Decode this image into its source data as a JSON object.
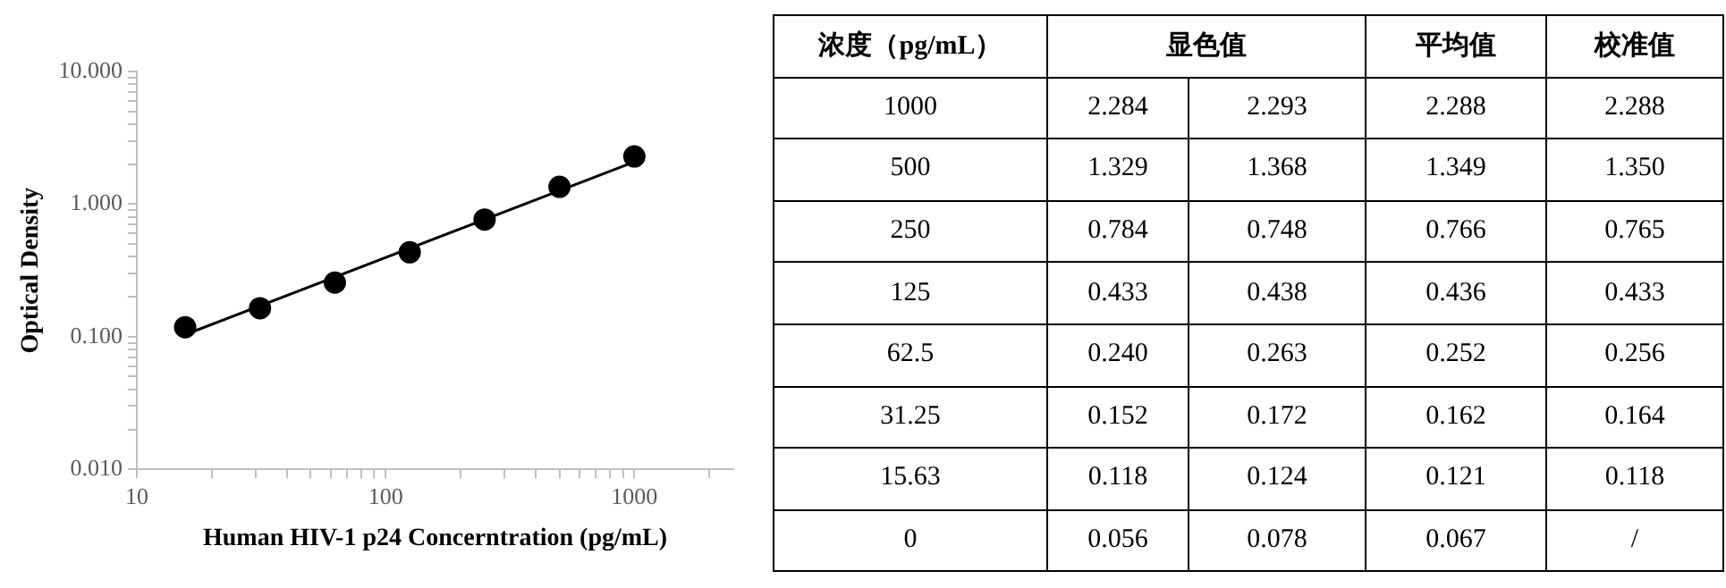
{
  "chart_data": [
    {
      "type": "scatter",
      "xlabel": "Human HIV-1 p24 Concerntration (pg/mL)",
      "ylabel": "Optical Density",
      "log": "xy",
      "grid": false,
      "marker": "circle",
      "xlim": [
        10,
        2500
      ],
      "ylim": [
        0.01,
        10
      ],
      "xticks": [
        10,
        {
          "value": 20,
          "label": null
        },
        {
          "value": 30,
          "label": null
        },
        {
          "value": 40,
          "label": null
        },
        {
          "value": 50,
          "label": null
        },
        {
          "value": 60,
          "label": null
        },
        {
          "value": 70,
          "label": null
        },
        {
          "value": 80,
          "label": null
        },
        {
          "value": 90,
          "label": null
        },
        100,
        {
          "value": 200,
          "label": null
        },
        {
          "value": 300,
          "label": null
        },
        {
          "value": 400,
          "label": null
        },
        {
          "value": 500,
          "label": null
        },
        {
          "value": 600,
          "label": null
        },
        {
          "value": 700,
          "label": null
        },
        {
          "value": 800,
          "label": null
        },
        {
          "value": 900,
          "label": null
        },
        1000,
        {
          "value": 2000,
          "label": null
        }
      ],
      "yticks": [
        {
          "value": 0.01,
          "label": "0.010"
        },
        {
          "value": 0.02,
          "label": null
        },
        {
          "value": 0.03,
          "label": null
        },
        {
          "value": 0.04,
          "label": null
        },
        {
          "value": 0.05,
          "label": null
        },
        {
          "value": 0.06,
          "label": null
        },
        {
          "value": 0.07,
          "label": null
        },
        {
          "value": 0.08,
          "label": null
        },
        {
          "value": 0.09,
          "label": null
        },
        {
          "value": 0.1,
          "label": "0.100"
        },
        {
          "value": 0.2,
          "label": null
        },
        {
          "value": 0.3,
          "label": null
        },
        {
          "value": 0.4,
          "label": null
        },
        {
          "value": 0.5,
          "label": null
        },
        {
          "value": 0.6,
          "label": null
        },
        {
          "value": 0.7,
          "label": null
        },
        {
          "value": 0.8,
          "label": null
        },
        {
          "value": 0.9,
          "label": null
        },
        {
          "value": 1,
          "label": "1.000"
        },
        {
          "value": 2,
          "label": null
        },
        {
          "value": 3,
          "label": null
        },
        {
          "value": 4,
          "label": null
        },
        {
          "value": 5,
          "label": null
        },
        {
          "value": 6,
          "label": null
        },
        {
          "value": 7,
          "label": null
        },
        {
          "value": 8,
          "label": null
        },
        {
          "value": 9,
          "label": null
        },
        {
          "value": 10,
          "label": "10.000"
        }
      ],
      "series": [
        {
          "type": "line",
          "color": "#000000",
          "marker": "none",
          "line_style": "solid",
          "x": [
            15.7,
            1000
          ],
          "values": [
            0.104,
            2.08
          ]
        },
        {
          "type": "scatter",
          "color": "#000000",
          "x": [
            15.63,
            31.25,
            62.5,
            125,
            250,
            500,
            1000
          ],
          "values": [
            0.118,
            0.164,
            0.256,
            0.433,
            0.765,
            1.35,
            2.288
          ]
        }
      ]
    },
    {
      "type": "other",
      "annotations": [
        "浓度（pg/mL）",
        "显色值",
        "平均值",
        "校准值",
        "1000",
        "2.284",
        "2.293",
        "2.288",
        "2.288",
        "500",
        "1.329",
        "1.368",
        "1.349",
        "1.350",
        "250",
        "0.784",
        "0.748",
        "0.766",
        "0.765",
        "125",
        "0.433",
        "0.438",
        "0.436",
        "0.433",
        "62.5",
        "0.240",
        "0.263",
        "0.252",
        "0.256",
        "31.25",
        "0.152",
        "0.172",
        "0.162",
        "0.164",
        "15.63",
        "0.118",
        "0.124",
        "0.121",
        "0.118",
        "0",
        "0.056",
        "0.078",
        "0.067",
        "/"
      ]
    }
  ]
}
